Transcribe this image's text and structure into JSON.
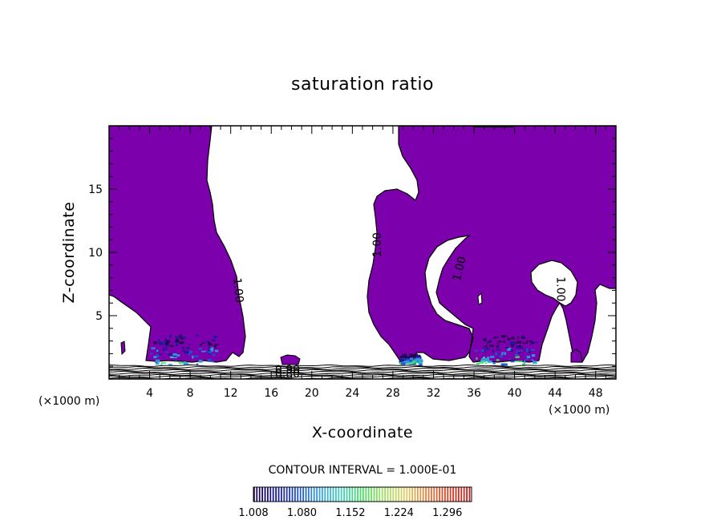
{
  "chart_data": {
    "type": "contour",
    "title": "saturation ratio",
    "xlabel": "X-coordinate",
    "ylabel": "Z-coordinate",
    "x_unit_label": "(×1000 m)",
    "x_unit_label_right": "(×1000 m)",
    "xlim": [
      0,
      50
    ],
    "ylim": [
      0,
      20
    ],
    "xticks": [
      4,
      8,
      12,
      16,
      20,
      24,
      28,
      32,
      36,
      40,
      44,
      48
    ],
    "yticks": [
      5,
      10,
      15
    ],
    "contour_interval_text": "CONTOUR INTERVAL =  1.000E-01",
    "contour_labels": [
      {
        "text": "1.00",
        "x": 12.7,
        "z": 7.0,
        "angle": 84
      },
      {
        "text": "1.00",
        "x": 26.5,
        "z": 10.6,
        "angle": -90
      },
      {
        "text": "1.00",
        "x": 34.6,
        "z": 8.7,
        "angle": -76
      },
      {
        "text": "1.00",
        "x": 44.5,
        "z": 7.1,
        "angle": 90
      },
      {
        "text": "0.90",
        "x": 17.6,
        "z": 0.7,
        "angle": 0
      },
      {
        "text": "0.80",
        "x": 17.6,
        "z": 0.38,
        "angle": 0
      }
    ],
    "colorbar": {
      "min": 1.008,
      "max": 1.332,
      "labels": [
        "1.008",
        "1.080",
        "1.152",
        "1.224",
        "1.296"
      ],
      "colors": [
        "#22004a",
        "#1a1a9a",
        "#2050d0",
        "#30a0e0",
        "#40d0c0",
        "#40e060",
        "#a0e060",
        "#e0d060",
        "#e08040",
        "#e04020",
        "#c02020"
      ]
    },
    "fill_color": "#7c00ab"
  }
}
